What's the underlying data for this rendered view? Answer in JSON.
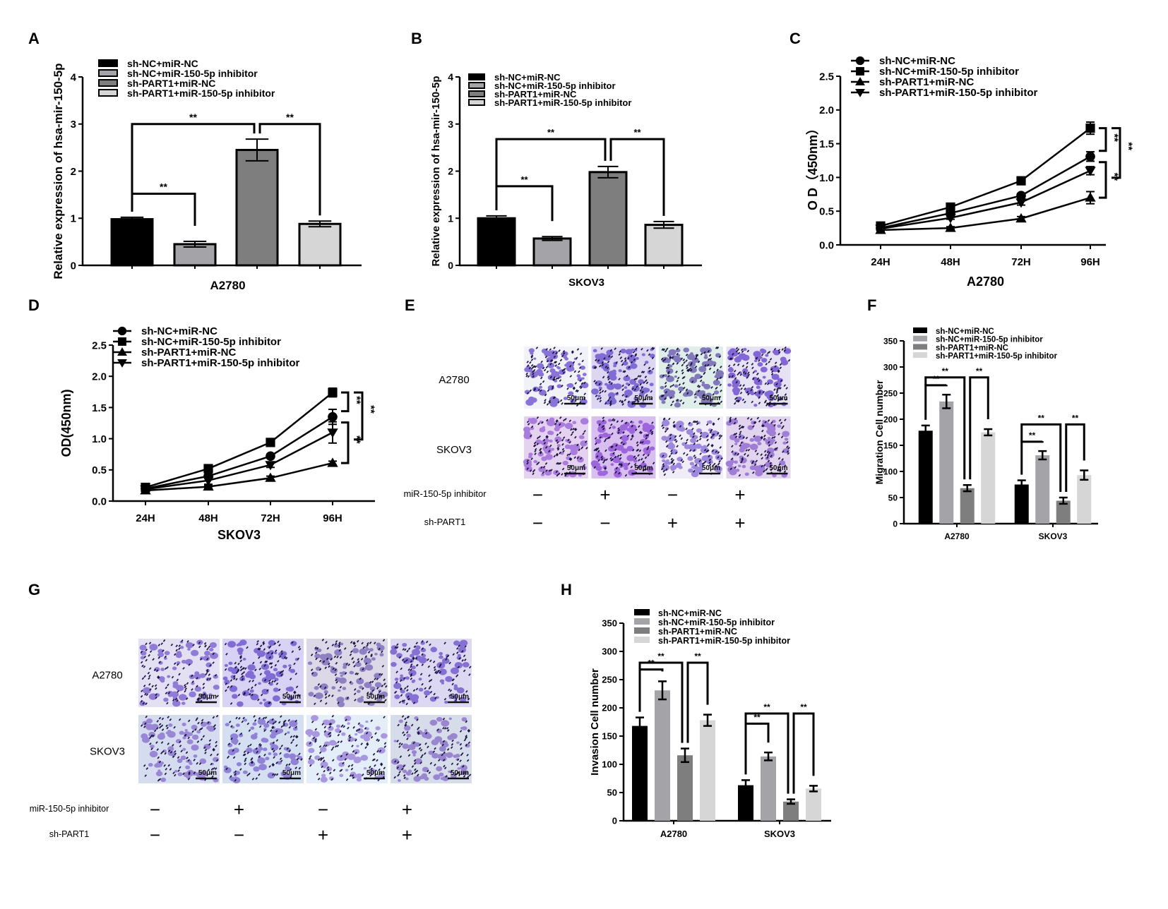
{
  "panel_labels": [
    "A",
    "B",
    "C",
    "D",
    "E",
    "F",
    "G",
    "H"
  ],
  "colors": {
    "black": "#000000",
    "mid_gray": "#a3a3a8",
    "dark_gray": "#7e7e7e",
    "light_gray": "#d6d6d6",
    "stain_purple": "#7b5bc8"
  },
  "significance": "**",
  "legend_groups": [
    "sh-NC+miR-NC",
    "sh-NC+miR-150-5p inhibitor",
    "sh-PART1+miR-NC",
    "sh-PART1+miR-150-5p inhibitor"
  ],
  "chart_data": [
    {
      "id": "A",
      "type": "bar",
      "title": "",
      "xlabel": "A2780",
      "ylabel": "Relative expression of hsa-mir-150-5p",
      "ylim": [
        0,
        4
      ],
      "yticks": [
        "0",
        "1",
        "2",
        "3",
        "4"
      ],
      "categories": [
        "sh-NC+miR-NC",
        "sh-NC+miR-150-5p inhibitor",
        "sh-PART1+miR-NC",
        "sh-PART1+miR-150-5p inhibitor"
      ],
      "values": [
        0.98,
        0.45,
        2.45,
        0.88
      ],
      "errors": [
        0.04,
        0.06,
        0.23,
        0.06
      ],
      "legend": "top-left",
      "annotations": [
        {
          "from": 0,
          "to": 1,
          "label": "**"
        },
        {
          "from": 0,
          "to": 2,
          "label": "**"
        },
        {
          "from": 2,
          "to": 3,
          "label": "**"
        }
      ]
    },
    {
      "id": "B",
      "type": "bar",
      "title": "",
      "xlabel": "SKOV3",
      "ylabel": "Relative expression of hsa-mir-150-5p",
      "ylim": [
        0,
        4
      ],
      "yticks": [
        "0",
        "1",
        "2",
        "3",
        "4"
      ],
      "categories": [
        "sh-NC+miR-NC",
        "sh-NC+miR-150-5p inhibitor",
        "sh-PART1+miR-NC",
        "sh-PART1+miR-150-5p inhibitor"
      ],
      "values": [
        1.0,
        0.57,
        1.98,
        0.86
      ],
      "errors": [
        0.05,
        0.04,
        0.12,
        0.07
      ],
      "legend": "top-left",
      "annotations": [
        {
          "from": 0,
          "to": 1,
          "label": "**"
        },
        {
          "from": 0,
          "to": 2,
          "label": "**"
        },
        {
          "from": 2,
          "to": 3,
          "label": "**"
        }
      ]
    },
    {
      "id": "C",
      "type": "line",
      "xlabel": "A2780",
      "ylabel": "O D（450nm）",
      "x": [
        "24H",
        "48H",
        "72H",
        "96H"
      ],
      "ylim": [
        0,
        2.5
      ],
      "yticks": [
        "0.0",
        "0.5",
        "1.0",
        "1.5",
        "2.0",
        "2.5"
      ],
      "series": [
        {
          "name": "sh-NC+miR-NC",
          "marker": "circle",
          "values": [
            0.25,
            0.47,
            0.73,
            1.31
          ],
          "errors": [
            0.02,
            0.02,
            0.03,
            0.07
          ]
        },
        {
          "name": "sh-NC+miR-150-5p inhibitor",
          "marker": "square",
          "values": [
            0.28,
            0.56,
            0.95,
            1.73
          ],
          "errors": [
            0.02,
            0.03,
            0.03,
            0.09
          ]
        },
        {
          "name": "sh-PART1+miR-NC",
          "marker": "triangle-up",
          "values": [
            0.22,
            0.25,
            0.39,
            0.7
          ],
          "errors": [
            0.02,
            0.02,
            0.03,
            0.09
          ]
        },
        {
          "name": "sh-PART1+miR-150-5p inhibitor",
          "marker": "triangle-down",
          "values": [
            0.24,
            0.4,
            0.63,
            1.1
          ],
          "errors": [
            0.02,
            0.02,
            0.04,
            0.06
          ]
        }
      ],
      "legend": "top-left",
      "annotations": [
        {
          "between": [
            1,
            0
          ],
          "label": "**"
        },
        {
          "between": [
            0,
            2
          ],
          "label": "**"
        },
        {
          "between": [
            1,
            3
          ],
          "label": "**"
        }
      ]
    },
    {
      "id": "D",
      "type": "line",
      "xlabel": "SKOV3",
      "ylabel": "OD(450nm)",
      "x": [
        "24H",
        "48H",
        "72H",
        "96H"
      ],
      "ylim": [
        0,
        2.5
      ],
      "yticks": [
        "0.0",
        "0.5",
        "1.0",
        "1.5",
        "2.0",
        "2.5"
      ],
      "series": [
        {
          "name": "sh-NC+miR-NC",
          "marker": "circle",
          "values": [
            0.2,
            0.4,
            0.72,
            1.35
          ],
          "errors": [
            0.02,
            0.03,
            0.03,
            0.12
          ]
        },
        {
          "name": "sh-NC+miR-150-5p inhibitor",
          "marker": "square",
          "values": [
            0.22,
            0.52,
            0.94,
            1.74
          ],
          "errors": [
            0.02,
            0.02,
            0.03,
            0.07
          ]
        },
        {
          "name": "sh-PART1+miR-NC",
          "marker": "triangle-up",
          "values": [
            0.17,
            0.23,
            0.37,
            0.61
          ],
          "errors": [
            0.02,
            0.02,
            0.03,
            0.03
          ]
        },
        {
          "name": "sh-PART1+miR-150-5p inhibitor",
          "marker": "triangle-down",
          "values": [
            0.19,
            0.33,
            0.58,
            1.1
          ],
          "errors": [
            0.02,
            0.06,
            0.04,
            0.17
          ]
        }
      ],
      "legend": "top-left",
      "annotations": [
        {
          "between": [
            1,
            0
          ],
          "label": "**"
        },
        {
          "between": [
            0,
            2
          ],
          "label": "**"
        },
        {
          "between": [
            1,
            3
          ],
          "label": "**"
        }
      ]
    },
    {
      "id": "F",
      "type": "bar",
      "xlabel": "",
      "ylabel": "Migration Cell number",
      "ylim": [
        0,
        350
      ],
      "yticks": [
        "0",
        "50",
        "100",
        "150",
        "200",
        "250",
        "300",
        "350"
      ],
      "categories": [
        "A2780",
        "SKOV3"
      ],
      "series": [
        {
          "name": "sh-NC+miR-NC",
          "values": [
            178,
            75
          ],
          "errors": [
            10,
            8
          ]
        },
        {
          "name": "sh-NC+miR-150-5p inhibitor",
          "values": [
            234,
            131
          ],
          "errors": [
            13,
            8
          ]
        },
        {
          "name": "sh-PART1+miR-NC",
          "values": [
            68,
            44
          ],
          "errors": [
            6,
            6
          ]
        },
        {
          "name": "sh-PART1+miR-150-5p inhibitor",
          "values": [
            175,
            93
          ],
          "errors": [
            6,
            9
          ]
        }
      ],
      "legend": "top-left"
    },
    {
      "id": "H",
      "type": "bar",
      "xlabel": "",
      "ylabel": "Invasion Cell number",
      "ylim": [
        0,
        350
      ],
      "yticks": [
        "0",
        "50",
        "100",
        "150",
        "200",
        "250",
        "300",
        "350"
      ],
      "categories": [
        "A2780",
        "SKOV3"
      ],
      "series": [
        {
          "name": "sh-NC+miR-NC",
          "values": [
            168,
            63
          ],
          "errors": [
            15,
            9
          ]
        },
        {
          "name": "sh-NC+miR-150-5p inhibitor",
          "values": [
            231,
            114
          ],
          "errors": [
            16,
            7
          ]
        },
        {
          "name": "sh-PART1+miR-NC",
          "values": [
            116,
            34
          ],
          "errors": [
            12,
            4
          ]
        },
        {
          "name": "sh-PART1+miR-150-5p inhibitor",
          "values": [
            178,
            57
          ],
          "errors": [
            10,
            5
          ]
        }
      ],
      "legend": "top-left"
    }
  ],
  "micrographs": {
    "E": {
      "rows": [
        "A2780",
        "SKOV3"
      ],
      "scale_bar": "50μm",
      "conditions": [
        {
          "label": "miR-150-5p inhibitor",
          "signs": [
            "−",
            "+",
            "−",
            "+"
          ]
        },
        {
          "label": "sh-PART1",
          "signs": [
            "−",
            "−",
            "+",
            "+"
          ]
        }
      ]
    },
    "G": {
      "rows": [
        "A2780",
        "SKOV3"
      ],
      "scale_bar": "50μm",
      "conditions": [
        {
          "label": "miR-150-5p inhibitor",
          "signs": [
            "−",
            "+",
            "−",
            "+"
          ]
        },
        {
          "label": "sh-PART1",
          "signs": [
            "−",
            "−",
            "+",
            "+"
          ]
        }
      ]
    }
  }
}
